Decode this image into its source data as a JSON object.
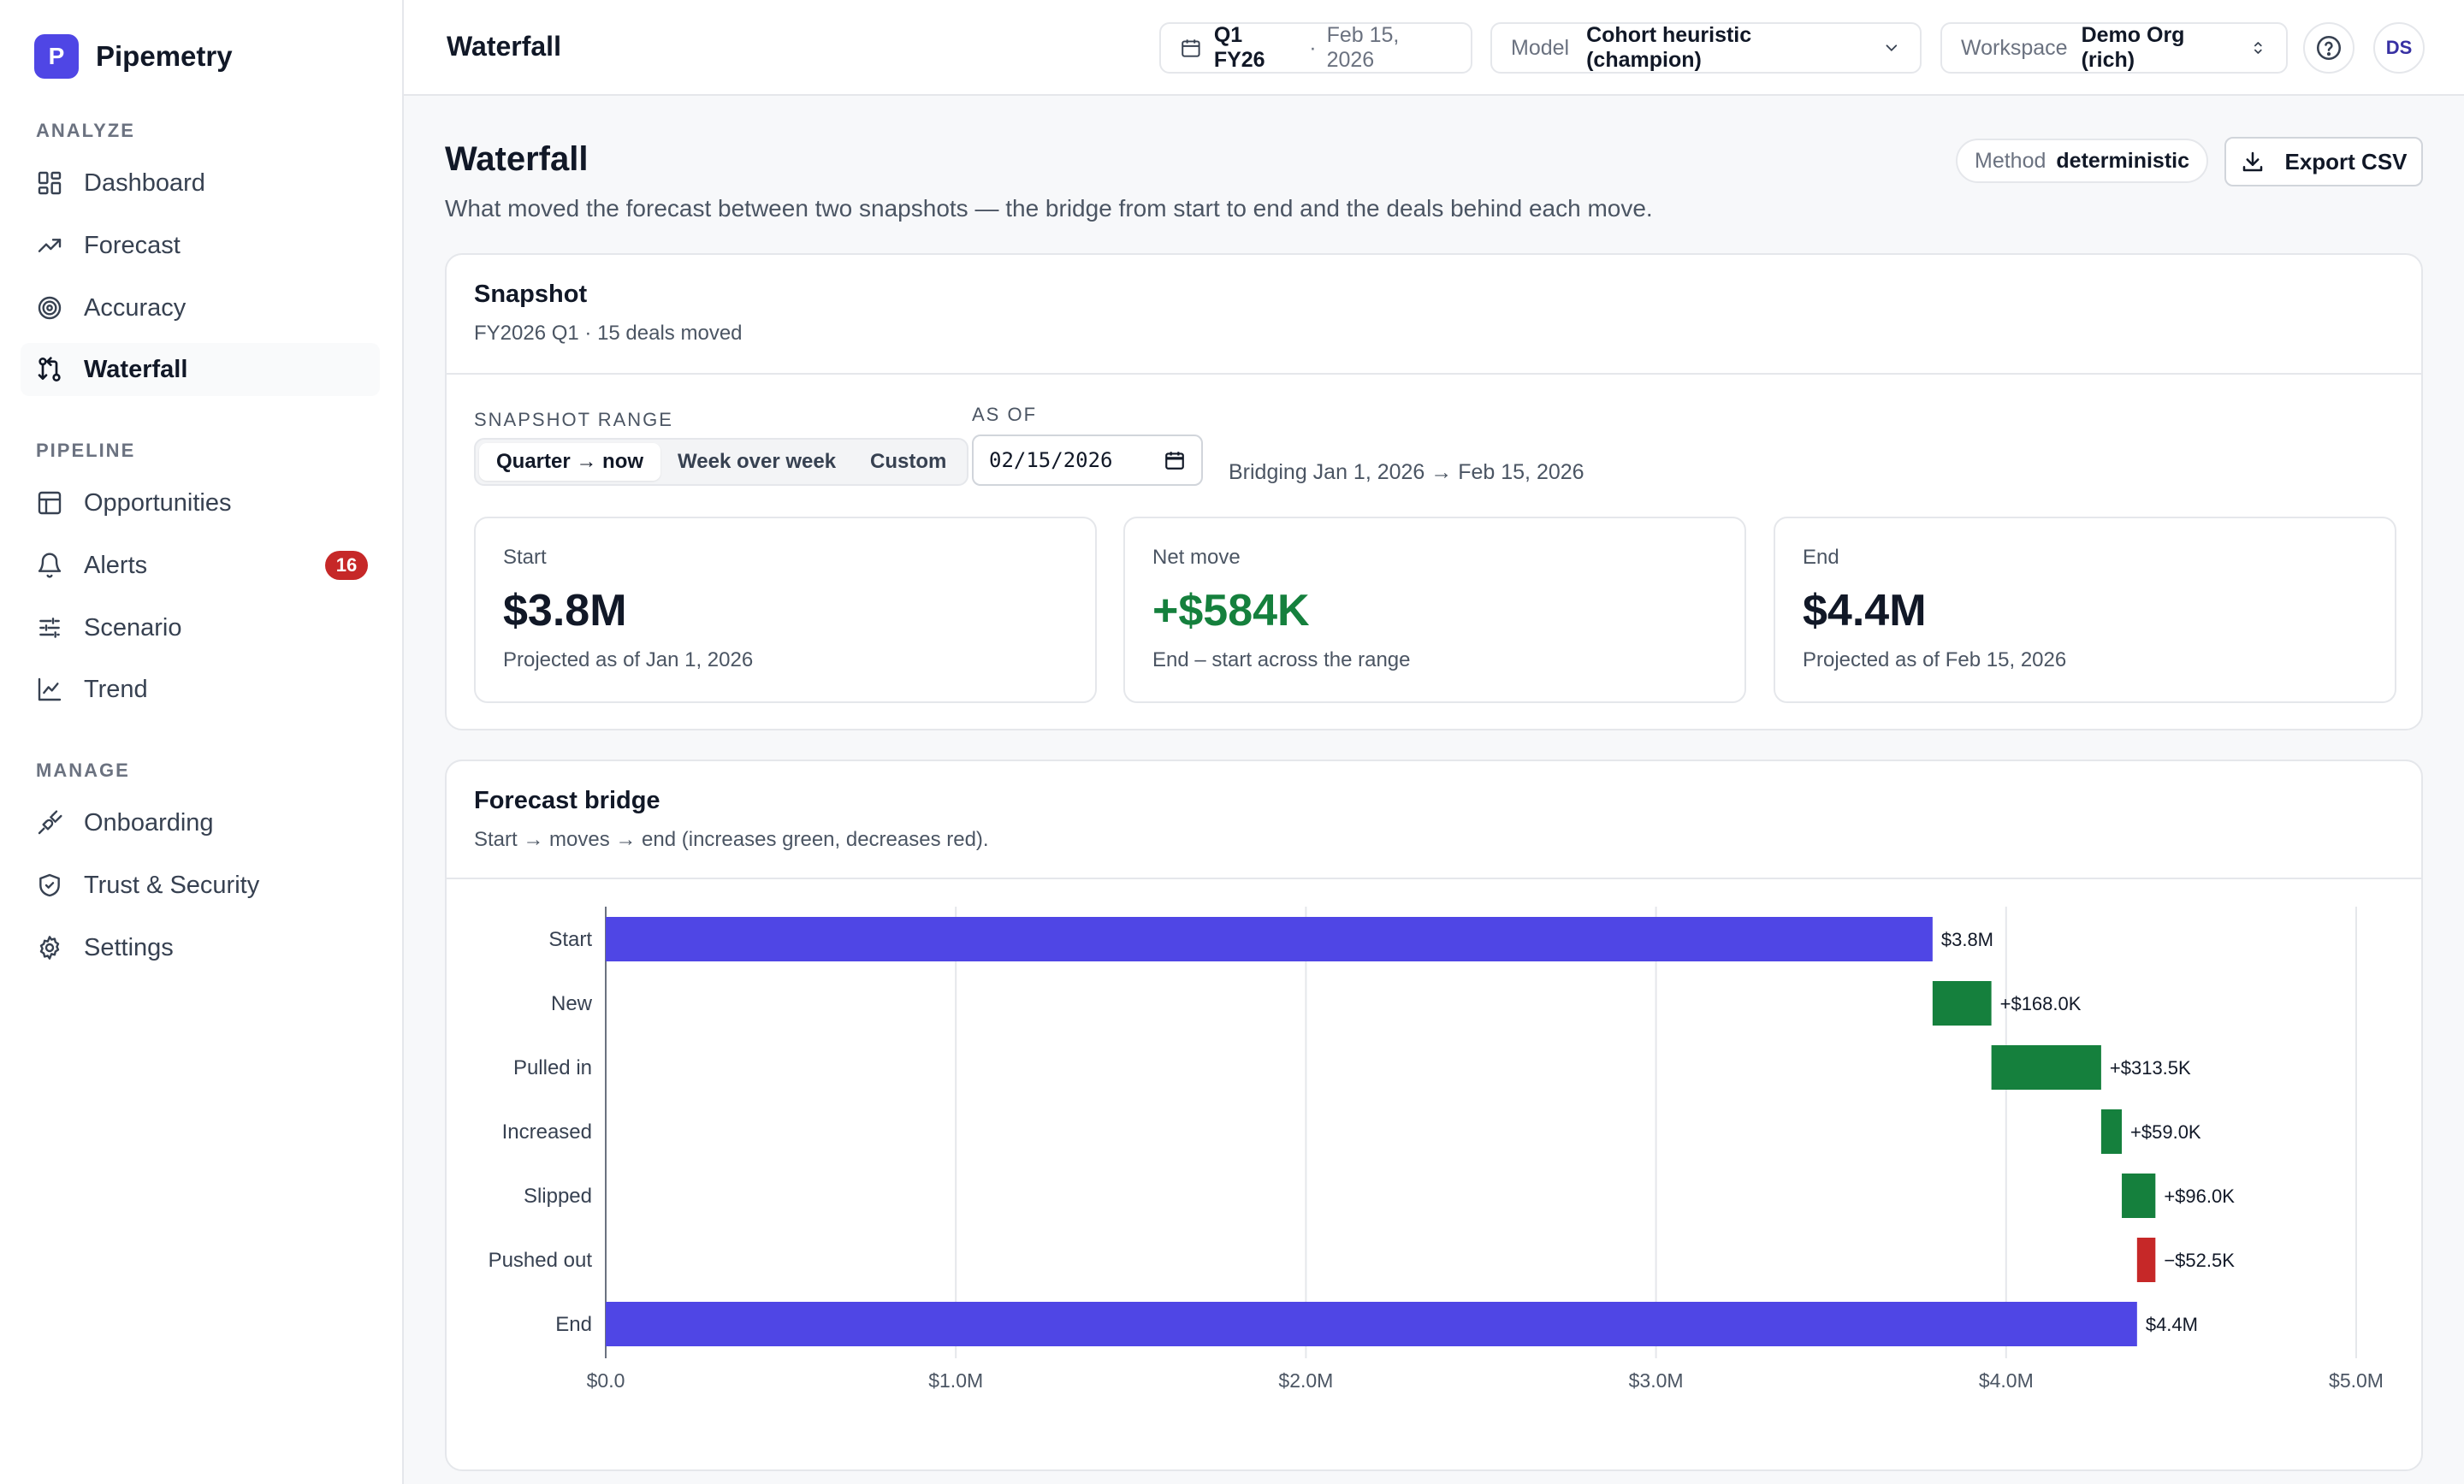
{
  "app": {
    "logo_letter": "P",
    "name": "Pipemetry"
  },
  "sidebar": {
    "sections": [
      {
        "label": "ANALYZE",
        "items": [
          {
            "label": "Dashboard",
            "icon": "dashboard-icon"
          },
          {
            "label": "Forecast",
            "icon": "trending-up-icon"
          },
          {
            "label": "Accuracy",
            "icon": "target-icon"
          },
          {
            "label": "Waterfall",
            "icon": "waterfall-icon",
            "active": true
          }
        ]
      },
      {
        "label": "PIPELINE",
        "items": [
          {
            "label": "Opportunities",
            "icon": "table-icon"
          },
          {
            "label": "Alerts",
            "icon": "bell-icon",
            "badge": "16"
          },
          {
            "label": "Scenario",
            "icon": "sliders-icon"
          },
          {
            "label": "Trend",
            "icon": "line-chart-icon"
          }
        ]
      },
      {
        "label": "MANAGE",
        "items": [
          {
            "label": "Onboarding",
            "icon": "plug-icon"
          },
          {
            "label": "Trust & Security",
            "icon": "shield-icon"
          },
          {
            "label": "Settings",
            "icon": "gear-icon"
          }
        ]
      }
    ]
  },
  "topbar": {
    "title": "Waterfall",
    "period": {
      "quarter": "Q1 FY26",
      "sep": "·",
      "date": "Feb 15, 2026"
    },
    "model": {
      "label": "Model",
      "value": "Cohort heuristic (champion)"
    },
    "workspace": {
      "label": "Workspace",
      "value": "Demo Org (rich)"
    },
    "avatar_initials": "DS"
  },
  "page": {
    "title": "Waterfall",
    "description": "What moved the forecast between two snapshots — the bridge from start to end and the deals behind each move.",
    "method": {
      "label": "Method",
      "value": "deterministic"
    },
    "export_label": "Export CSV"
  },
  "snapshot": {
    "title": "Snapshot",
    "subtitle": "FY2026 Q1 · 15 deals moved",
    "range_label": "SNAPSHOT RANGE",
    "range_options": [
      "Quarter → now",
      "Week over week",
      "Custom"
    ],
    "range_selected": "Quarter → now",
    "as_of_label": "AS OF",
    "as_of_value": "02/15/2026",
    "bridging_text": "Bridging Jan 1, 2026 → Feb 15, 2026",
    "stats": [
      {
        "label": "Start",
        "value": "$3.8M",
        "note": "Projected as of Jan 1, 2026",
        "tone": "neutral"
      },
      {
        "label": "Net move",
        "value": "+$584K",
        "note": "End – start across the range",
        "tone": "positive"
      },
      {
        "label": "End",
        "value": "$4.4M",
        "note": "Projected as of Feb 15, 2026",
        "tone": "neutral"
      }
    ]
  },
  "bridge": {
    "title": "Forecast bridge",
    "subtitle": "Start → moves → end (increases green, decreases red)."
  },
  "colors": {
    "accent": "#4f46e5",
    "increase": "#15803d",
    "decrease": "#c62828",
    "badge": "#c62828"
  },
  "chart_data": {
    "type": "bar",
    "orientation": "horizontal",
    "subtype": "waterfall",
    "unit": "USD",
    "categories": [
      "Start",
      "New",
      "Pulled in",
      "Increased",
      "Slipped",
      "Pushed out",
      "End"
    ],
    "bars": [
      {
        "category": "Start",
        "base": 0,
        "value": 3790000,
        "kind": "total",
        "label": "$3.8M"
      },
      {
        "category": "New",
        "base": 3790000,
        "value": 168000,
        "kind": "increase",
        "label": "+$168.0K"
      },
      {
        "category": "Pulled in",
        "base": 3958000,
        "value": 313500,
        "kind": "increase",
        "label": "+$313.5K"
      },
      {
        "category": "Increased",
        "base": 4271500,
        "value": 59000,
        "kind": "increase",
        "label": "+$59.0K"
      },
      {
        "category": "Slipped",
        "base": 4330500,
        "value": 96000,
        "kind": "increase",
        "label": "+$96.0K"
      },
      {
        "category": "Pushed out",
        "base": 4426500,
        "value": -52500,
        "kind": "decrease",
        "label": "−$52.5K"
      },
      {
        "category": "End",
        "base": 0,
        "value": 4374000,
        "kind": "total",
        "label": "$4.4M"
      }
    ],
    "xlim": [
      0,
      5000000
    ],
    "xticks": [
      0,
      1000000,
      2000000,
      3000000,
      4000000,
      5000000
    ],
    "xtick_labels": [
      "$0.0",
      "$1.0M",
      "$2.0M",
      "$3.0M",
      "$4.0M",
      "$5.0M"
    ],
    "grid": true,
    "legend": false
  }
}
